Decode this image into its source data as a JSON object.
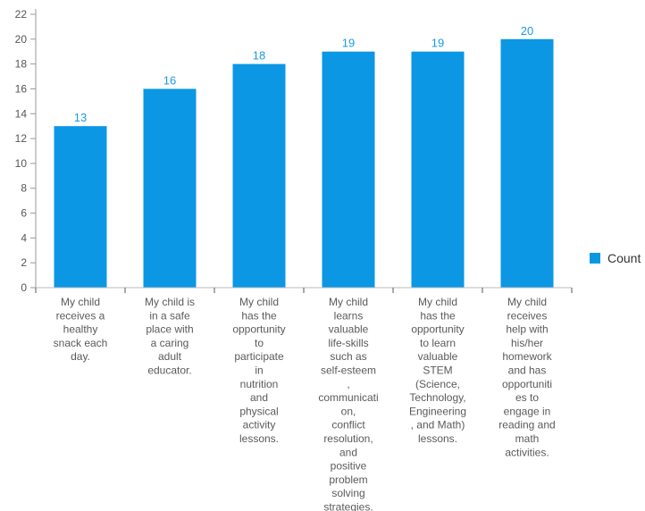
{
  "chart_data": {
    "type": "bar",
    "categories": [
      "My child receives a healthy snack each day.",
      "My child is in a safe place with a caring adult educator.",
      "My child has the opportunity to participate in nutrition and physical activity lessons.",
      "My child learns valuable life-skills such as self-esteem , communication, conflict resolution, and positive problem solving strategies.",
      "My child has the opportunity to learn valuable STEM (Science, Technology, Engineering , and Math) lessons.",
      "My child receives help with his/her homework and has opportunities to engage in reading and math activities."
    ],
    "category_label_lines": [
      [
        "My child",
        "receives a",
        "healthy",
        "snack each",
        "day."
      ],
      [
        "My child is",
        "in a safe",
        "place with",
        "a caring",
        "adult",
        "educator."
      ],
      [
        "My child",
        "has the",
        "opportunity",
        "to",
        "participate",
        "in",
        "nutrition",
        "and",
        "physical",
        "activity",
        "lessons."
      ],
      [
        "My child",
        "learns",
        "valuable",
        "life-skills",
        "such as",
        "self-esteem",
        ",",
        "communicati",
        "on,",
        "conflict",
        "resolution,",
        "and",
        "positive",
        "problem",
        "solving",
        "strategies."
      ],
      [
        "My child",
        "has the",
        "opportunity",
        "to learn",
        "valuable",
        "STEM",
        "(Science,",
        "Technology,",
        "Engineering",
        ", and Math)",
        "lessons."
      ],
      [
        "My child",
        "receives",
        "help with",
        "his/her",
        "homework",
        "and has",
        "opportuniti",
        "es to",
        "engage in",
        "reading and",
        "math",
        "activities."
      ]
    ],
    "series": [
      {
        "name": "Count",
        "values": [
          13,
          16,
          18,
          19,
          19,
          20
        ],
        "color": "#0b97e4"
      }
    ],
    "ylim": [
      0,
      22
    ],
    "yticks": [
      0,
      2,
      4,
      6,
      8,
      10,
      12,
      14,
      16,
      18,
      20,
      22
    ],
    "grid": false,
    "data_labels": true,
    "legend": {
      "position": "right",
      "entries": [
        "Count"
      ]
    },
    "title": "",
    "xlabel": "",
    "ylabel": ""
  }
}
